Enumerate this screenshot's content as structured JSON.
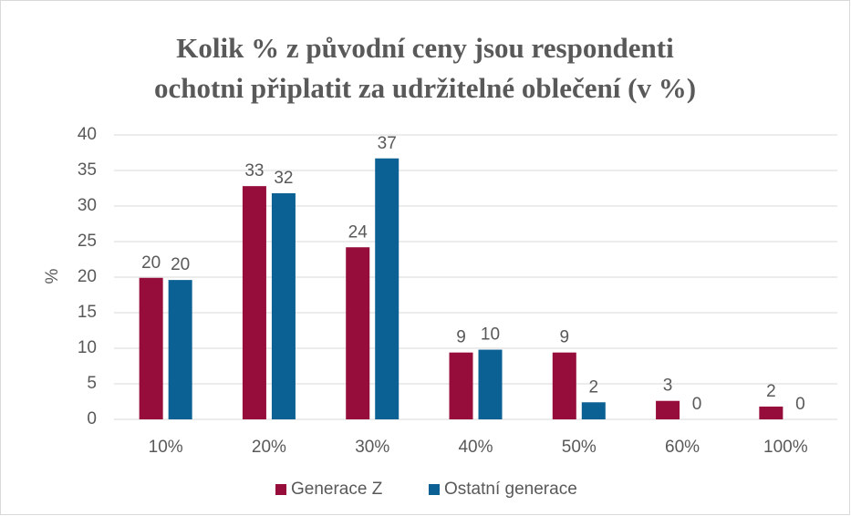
{
  "chart_data": {
    "type": "bar",
    "title": [
      "Kolik % z původní ceny jsou respondenti",
      "ochotni připlatit za udržitelné oblečení (v %)"
    ],
    "y_label": "%",
    "categories": [
      "10%",
      "20%",
      "30%",
      "40%",
      "50%",
      "60%",
      "100%"
    ],
    "series": [
      {
        "name": "Generace Z",
        "color": "#960c3a",
        "values": [
          19.9,
          32.8,
          24.2,
          9.4,
          9.4,
          2.6,
          1.8
        ],
        "value_labels": [
          "20",
          "33",
          "24",
          "9",
          "9",
          "3",
          "2"
        ]
      },
      {
        "name": "Ostatní generace",
        "color": "#0b6194",
        "values": [
          19.6,
          31.8,
          36.7,
          9.8,
          2.4,
          0,
          0
        ],
        "value_labels": [
          "20",
          "32",
          "37",
          "10",
          "2",
          "0",
          "0"
        ]
      }
    ],
    "ylim": [
      0,
      40
    ],
    "yticks": [
      0,
      5,
      10,
      15,
      20,
      25,
      30,
      35,
      40
    ],
    "grid": true,
    "legend": "bottom"
  }
}
